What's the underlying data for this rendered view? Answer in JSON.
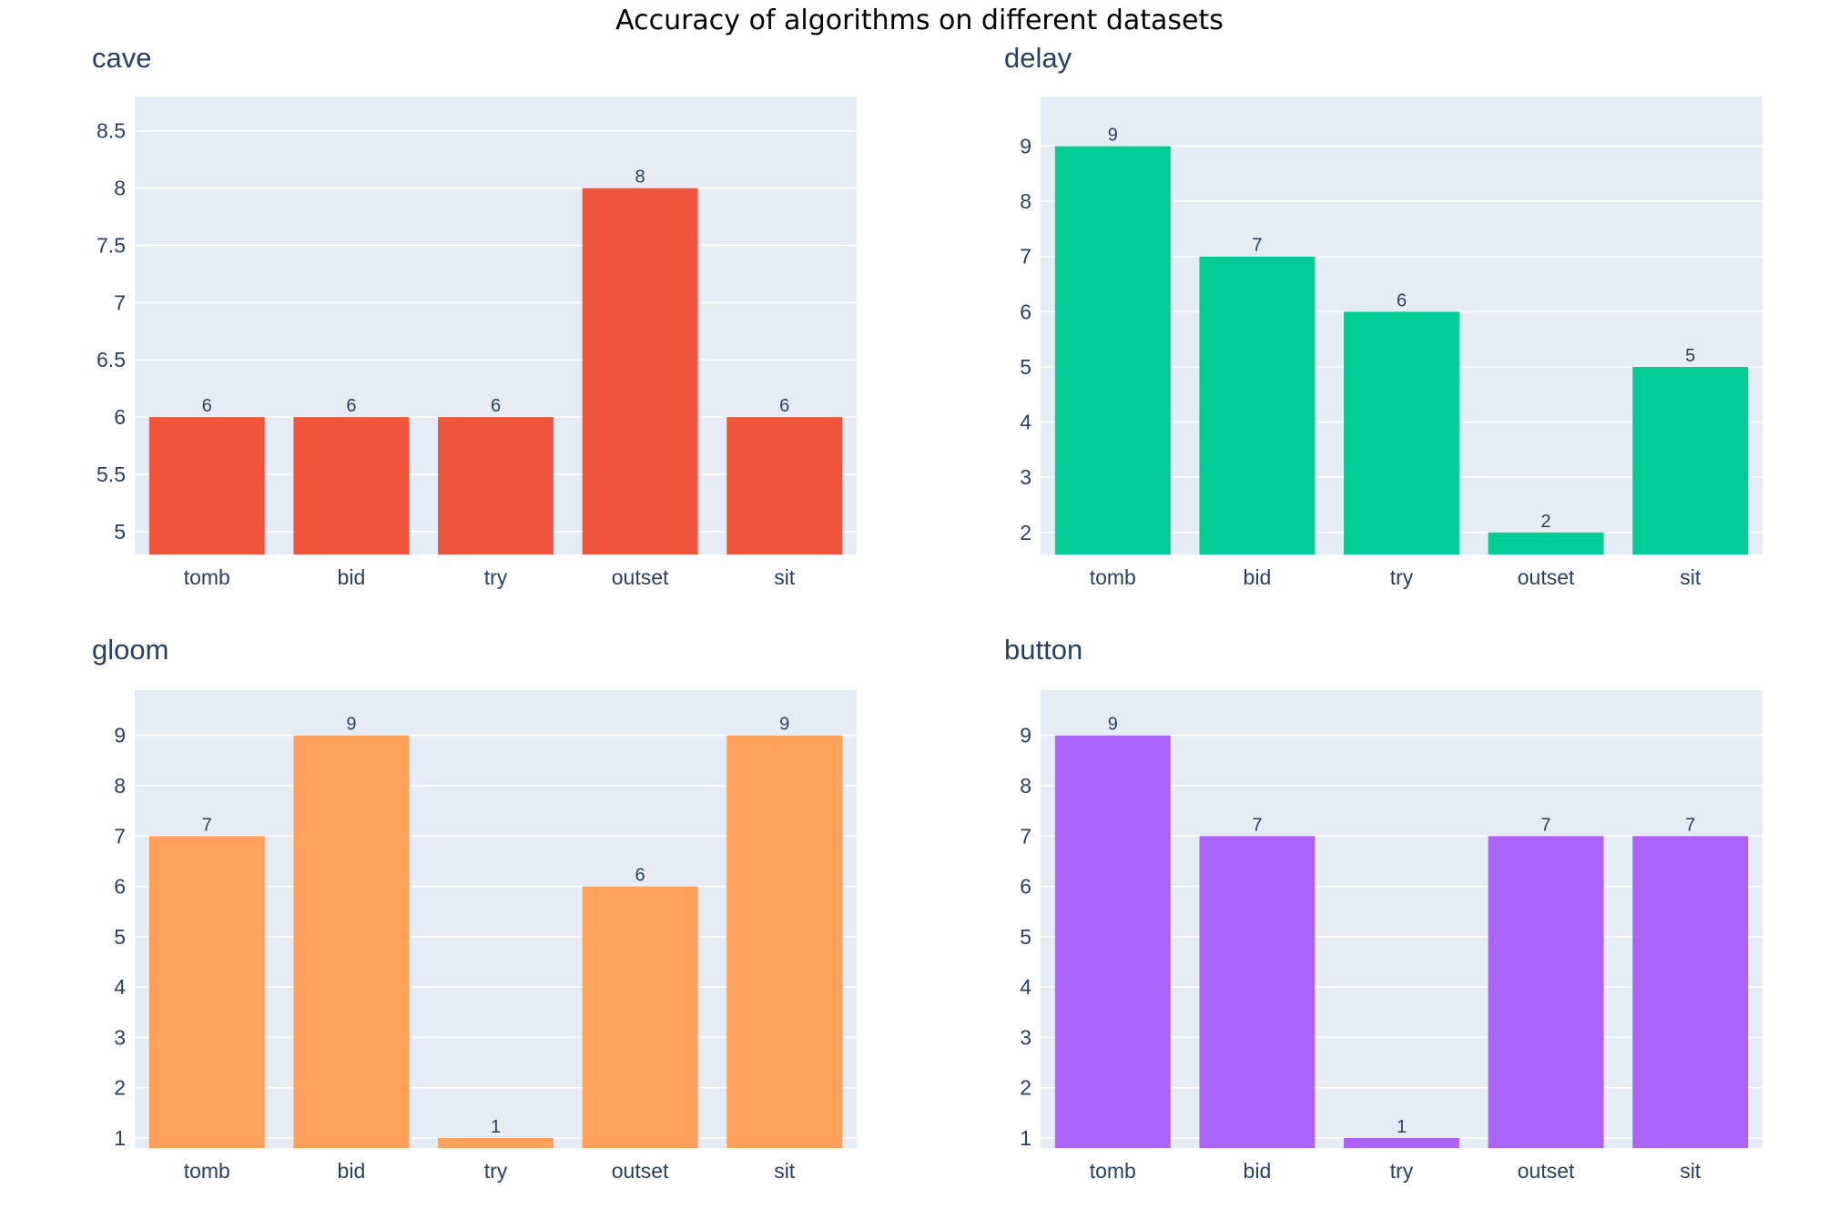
{
  "title": "Accuracy of algorithms on different datasets",
  "colors": {
    "plot_bg": "#e5ecf6",
    "text": "#2a3f5f",
    "grid": "#ffffff"
  },
  "chart_data": [
    {
      "type": "bar",
      "title": "cave",
      "color": "#ef553b",
      "categories": [
        "tomb",
        "bid",
        "try",
        "outset",
        "sit"
      ],
      "values": [
        6,
        6,
        6,
        8,
        6
      ],
      "ylim": [
        4.8,
        8.8
      ],
      "yticks": [
        5,
        5.5,
        6,
        6.5,
        7,
        7.5,
        8,
        8.5
      ],
      "ytick_labels": [
        "5",
        "5.5",
        "6",
        "6.5",
        "7",
        "7.5",
        "8",
        "8.5"
      ]
    },
    {
      "type": "bar",
      "title": "delay",
      "color": "#00cc96",
      "categories": [
        "tomb",
        "bid",
        "try",
        "outset",
        "sit"
      ],
      "values": [
        9,
        7,
        6,
        2,
        5
      ],
      "ylim": [
        1.6,
        9.9
      ],
      "yticks": [
        2,
        3,
        4,
        5,
        6,
        7,
        8,
        9
      ],
      "ytick_labels": [
        "2",
        "3",
        "4",
        "5",
        "6",
        "7",
        "8",
        "9"
      ]
    },
    {
      "type": "bar",
      "title": "gloom",
      "color": "#ffa15a",
      "categories": [
        "tomb",
        "bid",
        "try",
        "outset",
        "sit"
      ],
      "values": [
        7,
        9,
        1,
        6,
        9
      ],
      "ylim": [
        0.8,
        9.9
      ],
      "yticks": [
        1,
        2,
        3,
        4,
        5,
        6,
        7,
        8,
        9
      ],
      "ytick_labels": [
        "1",
        "2",
        "3",
        "4",
        "5",
        "6",
        "7",
        "8",
        "9"
      ]
    },
    {
      "type": "bar",
      "title": "button",
      "color": "#ab63fa",
      "categories": [
        "tomb",
        "bid",
        "try",
        "outset",
        "sit"
      ],
      "values": [
        9,
        7,
        1,
        7,
        7
      ],
      "ylim": [
        0.8,
        9.9
      ],
      "yticks": [
        1,
        2,
        3,
        4,
        5,
        6,
        7,
        8,
        9
      ],
      "ytick_labels": [
        "1",
        "2",
        "3",
        "4",
        "5",
        "6",
        "7",
        "8",
        "9"
      ]
    }
  ]
}
